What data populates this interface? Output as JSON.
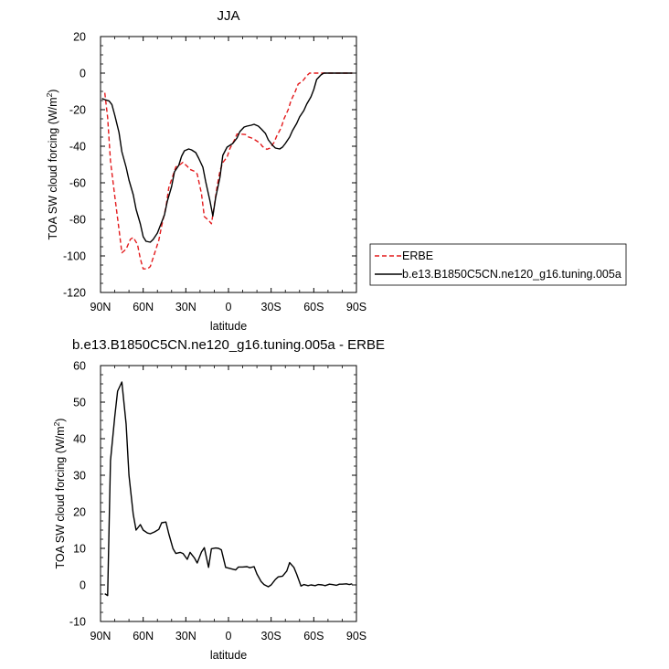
{
  "chart_data": [
    {
      "type": "line",
      "title": "JJA",
      "xlabel": "latitude",
      "ylabel_main": "TOA SW cloud forcing (W/m",
      "ylabel_sup": "2",
      "ylabel_close": ")",
      "xlim": [
        90,
        -90
      ],
      "ylim": [
        -120,
        20
      ],
      "x_ticks": [
        {
          "value": 90,
          "label": "90N"
        },
        {
          "value": 60,
          "label": "60N"
        },
        {
          "value": 30,
          "label": "30N"
        },
        {
          "value": 0,
          "label": "0"
        },
        {
          "value": -30,
          "label": "30S"
        },
        {
          "value": -60,
          "label": "60S"
        },
        {
          "value": -90,
          "label": "90S"
        }
      ],
      "y_ticks": [
        {
          "value": 20,
          "label": "20"
        },
        {
          "value": 0,
          "label": "0"
        },
        {
          "value": -20,
          "label": "-20"
        },
        {
          "value": -40,
          "label": "-40"
        },
        {
          "value": -60,
          "label": "-60"
        },
        {
          "value": -80,
          "label": "-80"
        },
        {
          "value": -100,
          "label": "-100"
        },
        {
          "value": -120,
          "label": "-120"
        }
      ],
      "series": [
        {
          "name": "ERBE",
          "color": "#e31a1c",
          "dash": true,
          "x": [
            87,
            85,
            83,
            80,
            77,
            75,
            72,
            69,
            67,
            64,
            62,
            60,
            57,
            55,
            52,
            49,
            47,
            44,
            42,
            39,
            37,
            34,
            32,
            29,
            27,
            24,
            22,
            19,
            17,
            14,
            12,
            10,
            8,
            6,
            4,
            1,
            -1,
            -4,
            -6,
            -9,
            -12,
            -14,
            -17,
            -19,
            -22,
            -24,
            -27,
            -29,
            -32,
            -34,
            -37,
            -39,
            -42,
            -44,
            -47,
            -49,
            -52,
            -55,
            -57,
            -60,
            -62,
            -65,
            -67,
            -70,
            -72,
            -75,
            -77,
            -80,
            -82,
            -85,
            -87
          ],
          "y": [
            -10.8,
            -24.3,
            -48.2,
            -67.2,
            -85.5,
            -98.3,
            -96.3,
            -90.9,
            -89.9,
            -93.7,
            -101.6,
            -107.1,
            -107.1,
            -105.8,
            -98.7,
            -91.4,
            -83.5,
            -73.4,
            -62.7,
            -55.9,
            -51.3,
            -50.0,
            -48.8,
            -51.0,
            -52.7,
            -53.7,
            -55.2,
            -65.9,
            -78.5,
            -80.5,
            -82.4,
            -72.7,
            -62.0,
            -53.6,
            -48.9,
            -46.0,
            -41.3,
            -36.9,
            -33.3,
            -33.4,
            -33.6,
            -34.9,
            -35.7,
            -36.7,
            -38.2,
            -40.2,
            -41.7,
            -41.1,
            -38.0,
            -34.3,
            -30.0,
            -25.1,
            -20.0,
            -15.0,
            -10.0,
            -6.0,
            -4.5,
            -1.5,
            0.0,
            0.0,
            0.0,
            0.0,
            0.0,
            0.0,
            0.0,
            0.0,
            0.0,
            0.0,
            0.0,
            0.0,
            0.0
          ]
        },
        {
          "name": "b.e13.B1850C5CN.ne120_g16.tuning.005a",
          "color": "#000000",
          "dash": false,
          "x": [
            89,
            87,
            84,
            82,
            80,
            77,
            75,
            72,
            70,
            67,
            65,
            62,
            60,
            58,
            55,
            53,
            50,
            48,
            45,
            43,
            40,
            38,
            35,
            33,
            31,
            28,
            26,
            23,
            21,
            18,
            16,
            13,
            11,
            9,
            6,
            4,
            1,
            -1,
            -3,
            -6,
            -8,
            -11,
            -13,
            -16,
            -18,
            -21,
            -23,
            -26,
            -28,
            -31,
            -33,
            -36,
            -38,
            -40,
            -43,
            -45,
            -48,
            -50,
            -53,
            -55,
            -58,
            -60,
            -62,
            -65,
            -67,
            -70,
            -72,
            -75,
            -77,
            -79,
            -82,
            -84,
            -87
          ],
          "y": [
            -13.9,
            -14.5,
            -15.2,
            -17.2,
            -23.0,
            -32.5,
            -43.0,
            -51.5,
            -58.5,
            -66.5,
            -74.5,
            -82.5,
            -89.5,
            -92.0,
            -92.5,
            -91.0,
            -87.5,
            -83.5,
            -77.5,
            -70.0,
            -62.0,
            -54.0,
            -50.5,
            -45.5,
            -42.5,
            -41.5,
            -42.0,
            -43.5,
            -46.5,
            -51.5,
            -59.5,
            -70.0,
            -78.2,
            -68.0,
            -57.0,
            -45.0,
            -40.5,
            -39.5,
            -38.5,
            -35.5,
            -32.0,
            -29.5,
            -29.0,
            -28.5,
            -28.0,
            -29.0,
            -30.5,
            -33.0,
            -36.5,
            -39.5,
            -41.0,
            -41.5,
            -40.5,
            -38.5,
            -35.0,
            -31.5,
            -27.5,
            -24.0,
            -20.5,
            -17.0,
            -13.0,
            -9.0,
            -3.5,
            -1.0,
            0.0,
            0.0,
            0.0,
            0.0,
            0.0,
            0.0,
            0.0,
            0.0,
            0.0
          ]
        }
      ],
      "legend": {
        "position": "right",
        "entries": [
          {
            "label": "ERBE",
            "color": "#e31a1c",
            "dash": true
          },
          {
            "label": "b.e13.B1850C5CN.ne120_g16.tuning.005a",
            "color": "#000000",
            "dash": false
          }
        ]
      }
    },
    {
      "type": "line",
      "title": "b.e13.B1850C5CN.ne120_g16.tuning.005a - ERBE",
      "xlabel": "latitude",
      "ylabel_main": "TOA SW cloud forcing (W/m",
      "ylabel_sup": "2",
      "ylabel_close": ")",
      "xlim": [
        90,
        -90
      ],
      "ylim": [
        -10,
        60
      ],
      "x_ticks": [
        {
          "value": 90,
          "label": "90N"
        },
        {
          "value": 60,
          "label": "60N"
        },
        {
          "value": 30,
          "label": "30N"
        },
        {
          "value": 0,
          "label": "0"
        },
        {
          "value": -30,
          "label": "30S"
        },
        {
          "value": -60,
          "label": "60S"
        },
        {
          "value": -90,
          "label": "90S"
        }
      ],
      "y_ticks": [
        {
          "value": 60,
          "label": "60"
        },
        {
          "value": 50,
          "label": "50"
        },
        {
          "value": 40,
          "label": "40"
        },
        {
          "value": 30,
          "label": "30"
        },
        {
          "value": 20,
          "label": "20"
        },
        {
          "value": 10,
          "label": "10"
        },
        {
          "value": 0,
          "label": "0"
        },
        {
          "value": -10,
          "label": "-10"
        }
      ],
      "series": [
        {
          "name": "",
          "color": "#000000",
          "dash": false,
          "x": [
            87,
            85,
            83,
            80,
            78,
            75,
            72,
            70,
            67,
            65,
            62,
            60,
            57,
            55,
            52,
            49,
            47,
            44,
            42,
            39,
            37,
            34,
            32,
            29,
            27,
            24,
            22,
            19,
            17,
            14,
            12,
            9,
            7,
            5,
            2,
            0,
            -3,
            -5,
            -7,
            -10,
            -13,
            -15,
            -18,
            -20,
            -23,
            -25,
            -28,
            -30,
            -33,
            -35,
            -38,
            -41,
            -43,
            -46,
            -48,
            -51,
            -53,
            -56,
            -58,
            -61,
            -63,
            -66,
            -68,
            -71,
            -73,
            -76,
            -78,
            -80,
            -83,
            -85,
            -87
          ],
          "y": [
            -2.4,
            -2.9,
            34.0,
            46.0,
            53.0,
            55.5,
            44.0,
            30.0,
            19.3,
            15.0,
            16.5,
            15.0,
            14.2,
            14.0,
            14.5,
            15.2,
            17.0,
            17.2,
            14.0,
            9.9,
            8.6,
            8.9,
            8.6,
            7.0,
            8.9,
            7.4,
            6.0,
            9.0,
            10.2,
            4.8,
            9.9,
            10.1,
            10.0,
            9.6,
            4.8,
            4.6,
            4.3,
            4.1,
            4.9,
            4.9,
            5.0,
            4.7,
            5.0,
            3.0,
            0.9,
            0.1,
            -0.5,
            0.0,
            1.5,
            2.2,
            2.4,
            3.8,
            6.1,
            4.8,
            2.9,
            -0.3,
            0.1,
            -0.2,
            0.0,
            -0.2,
            0.1,
            0.0,
            -0.2,
            0.2,
            0.1,
            -0.1,
            0.2,
            0.2,
            0.3,
            0.1,
            0.3
          ]
        }
      ]
    }
  ]
}
